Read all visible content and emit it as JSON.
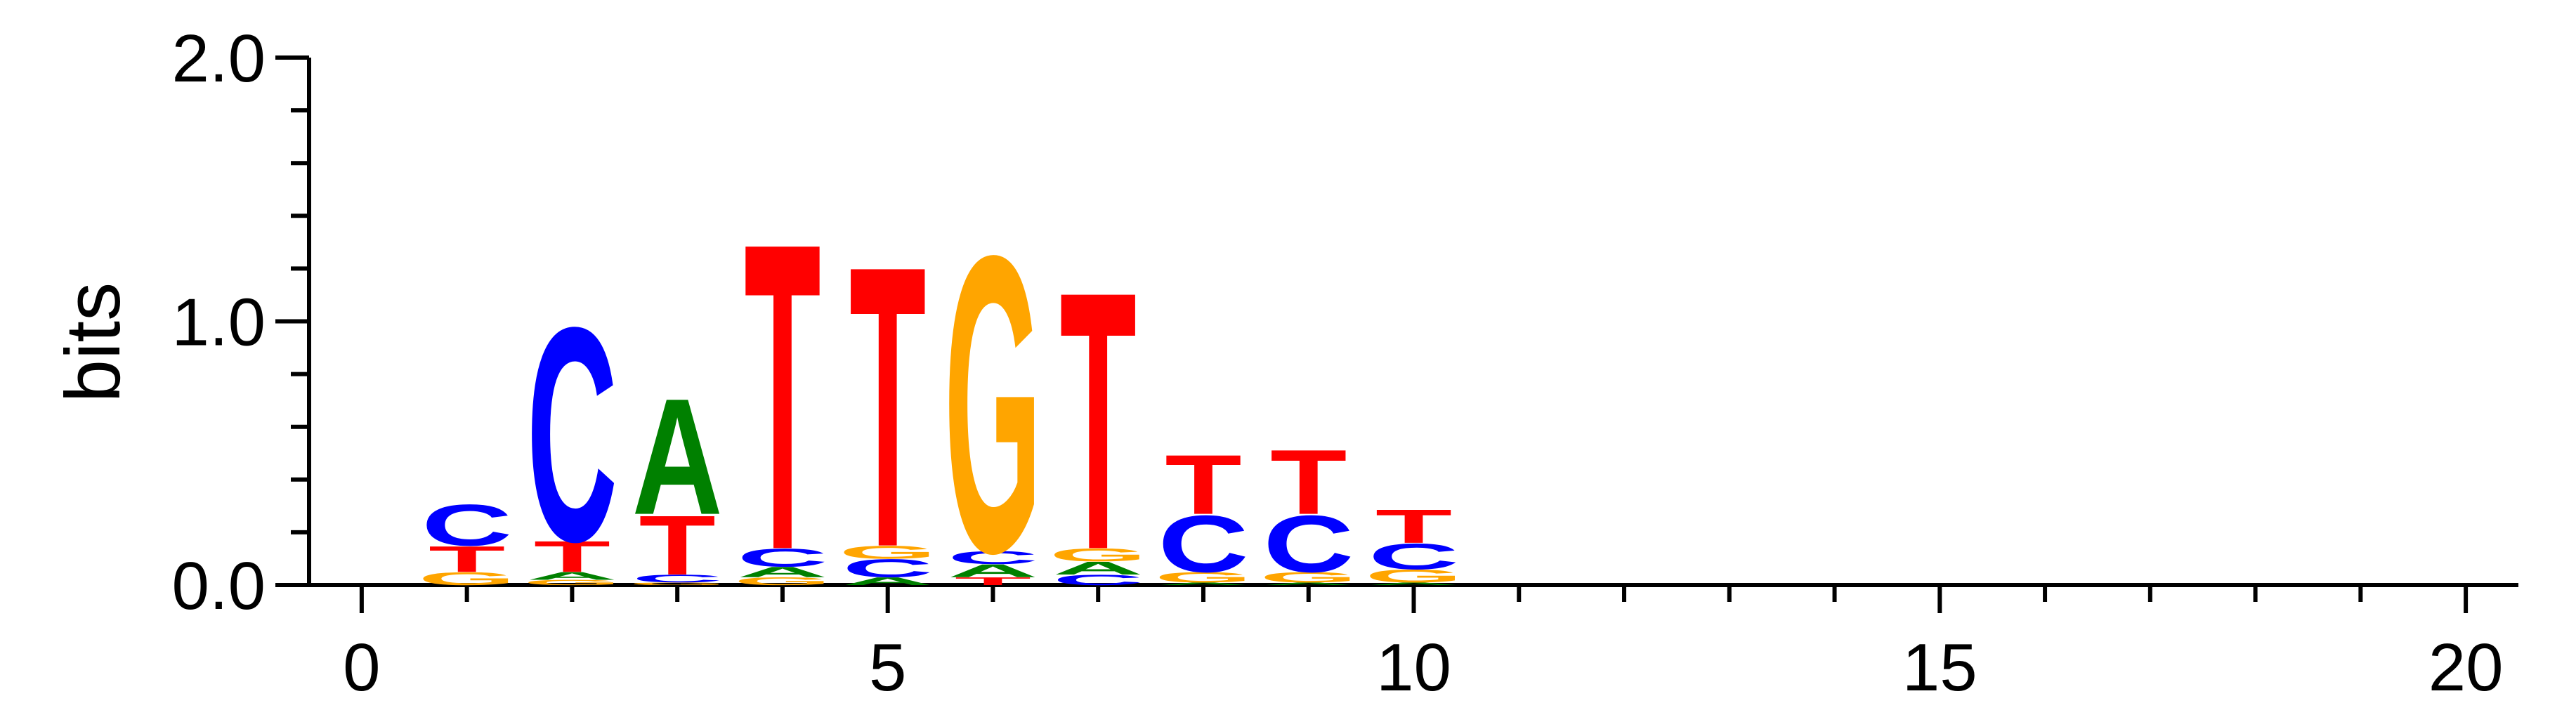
{
  "chart_data": {
    "type": "sequence-logo",
    "ylabel": "bits",
    "xlabel": "",
    "ylim": [
      0,
      2
    ],
    "xlim": [
      -0.5,
      20.5
    ],
    "y_ticks": [
      {
        "value": 0,
        "label": "0.0"
      },
      {
        "value": 1,
        "label": "1.0"
      },
      {
        "value": 2,
        "label": "2.0"
      }
    ],
    "y_minor_step": 0.2,
    "x_ticks": [
      {
        "value": 0,
        "label": "0"
      },
      {
        "value": 5,
        "label": "5"
      },
      {
        "value": 10,
        "label": "10"
      },
      {
        "value": 15,
        "label": "15"
      },
      {
        "value": 20,
        "label": "20"
      }
    ],
    "x_minor_step": 1,
    "colors": {
      "A": "#008000",
      "C": "#0000ff",
      "G": "#ffa500",
      "T": "#ff0000"
    },
    "positions": [
      {
        "pos": 1,
        "letters": [
          {
            "base": "G",
            "height": 0.05
          },
          {
            "base": "T",
            "height": 0.1
          },
          {
            "base": "C",
            "height": 0.16
          }
        ]
      },
      {
        "pos": 2,
        "letters": [
          {
            "base": "G",
            "height": 0.02
          },
          {
            "base": "A",
            "height": 0.03
          },
          {
            "base": "T",
            "height": 0.12
          },
          {
            "base": "C",
            "height": 0.83
          }
        ]
      },
      {
        "pos": 3,
        "letters": [
          {
            "base": "G",
            "height": 0.01
          },
          {
            "base": "C",
            "height": 0.03
          },
          {
            "base": "T",
            "height": 0.23
          },
          {
            "base": "A",
            "height": 0.45
          }
        ]
      },
      {
        "pos": 4,
        "letters": [
          {
            "base": "G",
            "height": 0.03
          },
          {
            "base": "A",
            "height": 0.04
          },
          {
            "base": "C",
            "height": 0.07
          },
          {
            "base": "T",
            "height": 1.19
          }
        ]
      },
      {
        "pos": 5,
        "letters": [
          {
            "base": "A",
            "height": 0.03
          },
          {
            "base": "C",
            "height": 0.07
          },
          {
            "base": "G",
            "height": 0.05
          },
          {
            "base": "T",
            "height": 1.09
          }
        ]
      },
      {
        "pos": 6,
        "letters": [
          {
            "base": "T",
            "height": 0.03
          },
          {
            "base": "A",
            "height": 0.05
          },
          {
            "base": "C",
            "height": 0.05
          },
          {
            "base": "G",
            "height": 1.15
          }
        ]
      },
      {
        "pos": 7,
        "letters": [
          {
            "base": "C",
            "height": 0.04
          },
          {
            "base": "A",
            "height": 0.05
          },
          {
            "base": "G",
            "height": 0.05
          },
          {
            "base": "T",
            "height": 1.0
          }
        ]
      },
      {
        "pos": 8,
        "letters": [
          {
            "base": "A",
            "height": 0.01
          },
          {
            "base": "G",
            "height": 0.04
          },
          {
            "base": "C",
            "height": 0.22
          },
          {
            "base": "T",
            "height": 0.23
          }
        ]
      },
      {
        "pos": 9,
        "letters": [
          {
            "base": "A",
            "height": 0.01
          },
          {
            "base": "G",
            "height": 0.04
          },
          {
            "base": "C",
            "height": 0.22
          },
          {
            "base": "T",
            "height": 0.25
          }
        ]
      },
      {
        "pos": 10,
        "letters": [
          {
            "base": "A",
            "height": 0.01
          },
          {
            "base": "G",
            "height": 0.05
          },
          {
            "base": "C",
            "height": 0.1
          },
          {
            "base": "T",
            "height": 0.13
          }
        ]
      }
    ]
  }
}
